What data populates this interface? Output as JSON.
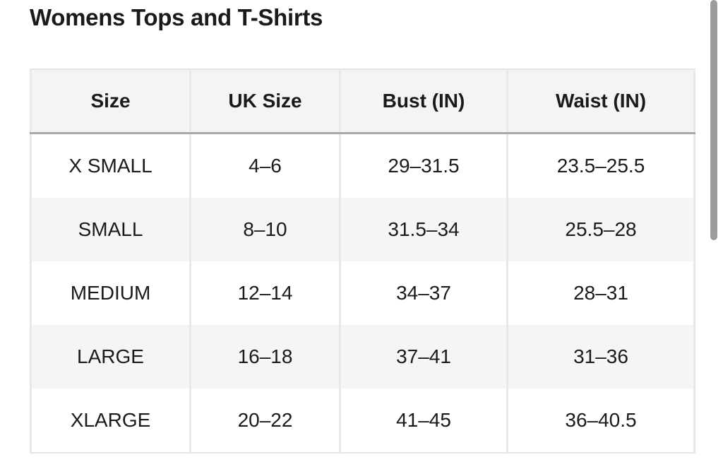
{
  "header": {
    "title": "Womens Tops and T-Shirts"
  },
  "table": {
    "columns": [
      "Size",
      "UK Size",
      "Bust (IN)",
      "Waist (IN)"
    ],
    "rows": [
      [
        "X SMALL",
        "4–6",
        "29–31.5",
        "23.5–25.5"
      ],
      [
        "SMALL",
        "8–10",
        "31.5–34",
        "25.5–28"
      ],
      [
        "MEDIUM",
        "12–14",
        "34–37",
        "28–31"
      ],
      [
        "LARGE",
        "16–18",
        "37–41",
        "31–36"
      ],
      [
        "XLARGE",
        "20–22",
        "41–45",
        "36–40.5"
      ]
    ]
  }
}
